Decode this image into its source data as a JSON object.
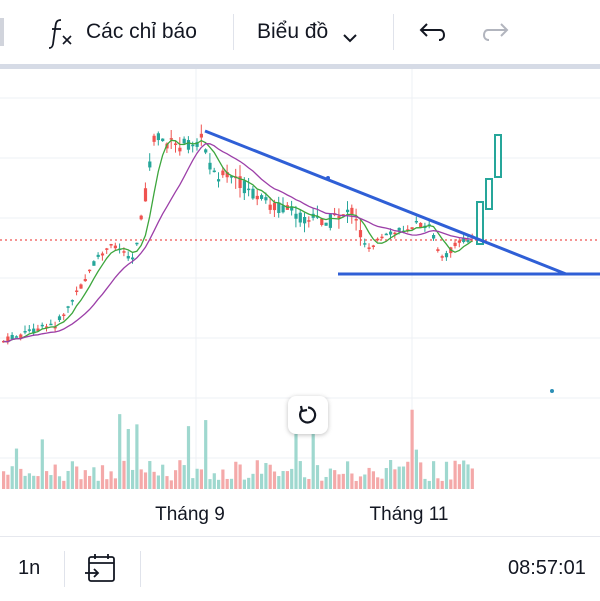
{
  "toolbar": {
    "indicators_label": "Các chỉ báo",
    "chart_type_label": "Biểu đồ",
    "icons": [
      "function-fx-icon",
      "chevron-down-icon",
      "undo-icon",
      "redo-icon"
    ]
  },
  "chart_data": {
    "type": "candlestick",
    "x_tick_labels": [
      "Tháng 9",
      "Tháng 11"
    ],
    "volume_colors": {
      "up": "#9fd8cf",
      "down": "#f4a9a9"
    },
    "candle_colors": {
      "up": "#26a69a",
      "down": "#ef5350"
    },
    "ma_colors": {
      "fast": "#3da63d",
      "slow": "#9c3fa8"
    },
    "trendline_color": "#2f5fd6",
    "price_line_color": "#ef5350"
  },
  "bottombar": {
    "interval_label": "1n",
    "time": "08:57:01"
  },
  "colors": {
    "accent": "#2f5fd6",
    "up": "#26a69a",
    "down": "#ef5350"
  }
}
